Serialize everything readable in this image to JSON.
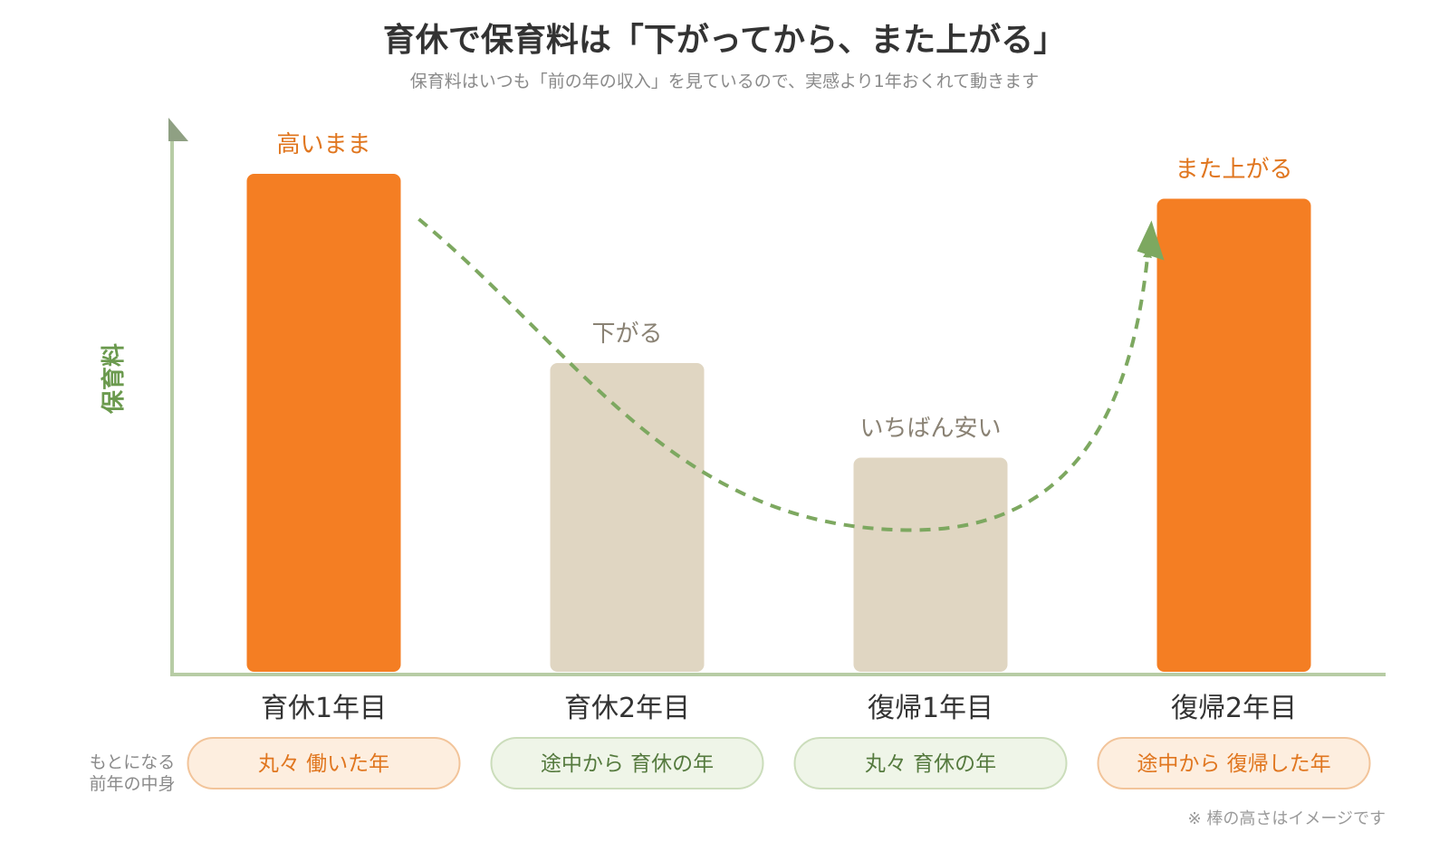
{
  "chart_data": {
    "type": "bar",
    "title": "育休で保育料は「下がってから、また上がる」",
    "subtitle": "保育料はいつも「前の年の収入」を見ているので、実感より1年おくれて動きます",
    "ylabel": "保育料",
    "ylim": [
      0,
      100
    ],
    "categories": [
      "育休1年目",
      "育休2年目",
      "復帰1年目",
      "復帰2年目"
    ],
    "values": [
      100,
      62,
      43,
      95
    ],
    "bar_labels": [
      "高いまま",
      "下がる",
      "いちばん安い",
      "また上がる"
    ],
    "highlight": [
      true,
      false,
      false,
      true
    ],
    "basis_label_line1": "もとになる",
    "basis_label_line2": "前年の中身",
    "basis": [
      "丸々 働いた年",
      "途中から 育休の年",
      "丸々 育休の年",
      "途中から 復帰した年"
    ],
    "basis_style": [
      "work",
      "leave",
      "leave",
      "work"
    ],
    "footnote": "※ 棒の高さはイメージです",
    "colors": {
      "highlight_bar": "#F47E23",
      "normal_bar": "#E0D6C2",
      "highlight_text": "#E0761F",
      "normal_text": "#8A8274",
      "axis": "#B7CCA5",
      "ylabel": "#6B9A4E",
      "curve": "#7DA860",
      "title": "#333333",
      "subtitle": "#8A8A8A",
      "pill_work_bg": "#FDEEDF",
      "pill_work_border": "#F2C49A",
      "pill_work_text": "#E0761F",
      "pill_leave_bg": "#EFF5E8",
      "pill_leave_border": "#CBDDBB",
      "pill_leave_text": "#557A3E"
    }
  }
}
